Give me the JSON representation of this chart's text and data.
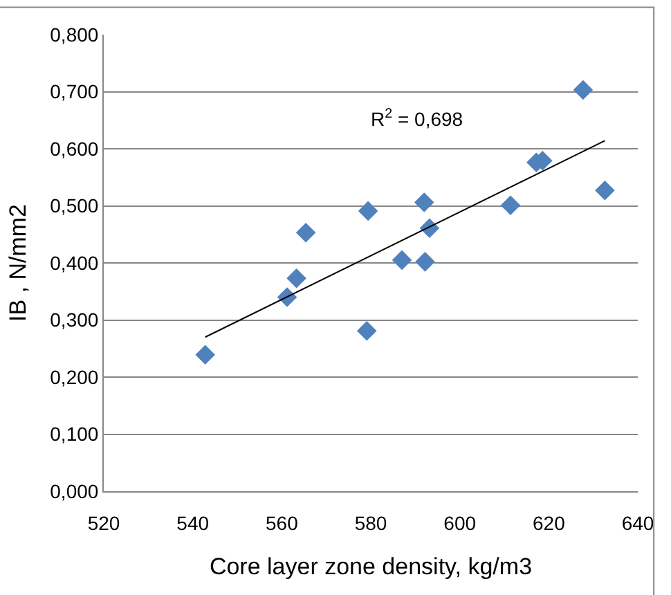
{
  "chart_data": {
    "type": "scatter",
    "xlabel": "Core layer zone density, kg/m3",
    "ylabel": "IB , N/mm2",
    "marker": "diamond",
    "grid": "y",
    "xlim": [
      520,
      640
    ],
    "xticks": [
      520,
      540,
      560,
      580,
      600,
      620,
      640
    ],
    "ylim": [
      0,
      0.8
    ],
    "yticks": [
      {
        "value": 0,
        "label": "0,000"
      },
      {
        "value": 0.1,
        "label": "0,100"
      },
      {
        "value": 0.2,
        "label": "0,200"
      },
      {
        "value": 0.3,
        "label": "0,300"
      },
      {
        "value": 0.4,
        "label": "0,400"
      },
      {
        "value": 0.5,
        "label": "0,500"
      },
      {
        "value": 0.6,
        "label": "0,600"
      },
      {
        "value": 0.7,
        "label": "0,700"
      },
      {
        "value": 0.8,
        "label": "0,800"
      }
    ],
    "annotations": [
      "R$^{2}$ = 0,698"
    ],
    "series": [
      {
        "color": "#4f81bd",
        "x": [
          542.8,
          561.2,
          563.3,
          565.4,
          579.1,
          579.4,
          587.0,
          592.0,
          592.2,
          593.2,
          611.4,
          617.2,
          618.6,
          627.7,
          632.6
        ],
        "values": [
          0.239,
          0.34,
          0.373,
          0.453,
          0.281,
          0.491,
          0.405,
          0.506,
          0.402,
          0.461,
          0.501,
          0.576,
          0.579,
          0.703,
          0.527
        ]
      },
      {
        "type": "line",
        "marker": "none",
        "color": "#000000",
        "x": [
          542.8,
          632.6
        ],
        "values": [
          0.27,
          0.614
        ]
      }
    ]
  }
}
